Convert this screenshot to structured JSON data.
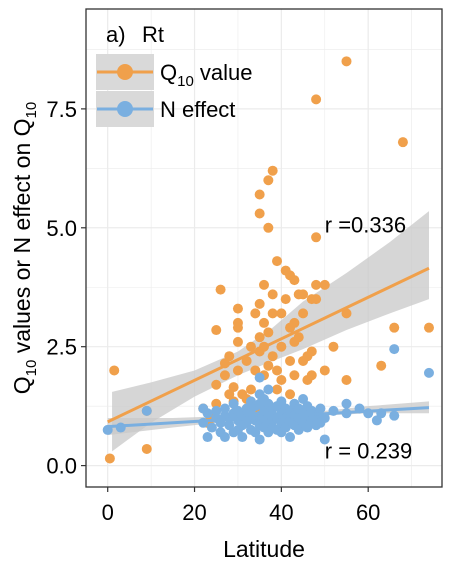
{
  "chart_data": {
    "type": "scatter",
    "panel_label": "a)",
    "panel_title": "Rt",
    "xlabel": "Latitude",
    "ylabel": {
      "before": "Q",
      "sub": "10",
      "middle": " values or N effect on Q",
      "sub2": "10"
    },
    "xlim": [
      -5,
      77
    ],
    "ylim": [
      -0.45,
      9.6
    ],
    "x_ticks": [
      0,
      20,
      40,
      60
    ],
    "x_tick_labels": [
      "0",
      "20",
      "40",
      "60"
    ],
    "y_ticks": [
      0,
      2.5,
      5,
      7.5
    ],
    "y_tick_labels": [
      "0.0",
      "2.5",
      "5.0",
      "7.5"
    ],
    "grid": true,
    "legend_position": "top-left",
    "colors": {
      "q10": "#F0A04B",
      "n": "#7AAFE0",
      "ci": "#C8C8C8",
      "grid": "#EBEBEB"
    },
    "series": [
      {
        "key": "q10",
        "legend": {
          "main": "Q",
          "sub": "10",
          "rest": " value"
        },
        "points": [
          [
            0.5,
            0.15
          ],
          [
            1.5,
            2.0
          ],
          [
            9,
            0.35
          ],
          [
            9,
            1.15
          ],
          [
            22,
            1.2
          ],
          [
            23,
            0.9
          ],
          [
            24,
            1.0
          ],
          [
            25,
            1.3
          ],
          [
            25,
            1.7
          ],
          [
            25,
            2.85
          ],
          [
            27,
            1.9
          ],
          [
            27,
            2.15
          ],
          [
            26,
            3.7
          ],
          [
            28,
            1.5
          ],
          [
            28,
            2.3
          ],
          [
            29,
            1.35
          ],
          [
            29,
            1.65
          ],
          [
            30,
            2.0
          ],
          [
            30,
            2.6
          ],
          [
            30,
            3.3
          ],
          [
            30,
            3.0
          ],
          [
            30,
            2.9
          ],
          [
            31,
            1.5
          ],
          [
            32,
            1.4
          ],
          [
            32,
            2.2
          ],
          [
            33,
            1.6
          ],
          [
            33,
            2.5
          ],
          [
            34,
            2.0
          ],
          [
            34,
            3.2
          ],
          [
            34,
            1.2
          ],
          [
            35,
            2.7
          ],
          [
            35,
            5.3
          ],
          [
            35,
            5.7
          ],
          [
            35,
            3.4
          ],
          [
            35,
            2.4
          ],
          [
            36,
            3.0
          ],
          [
            36,
            2.5
          ],
          [
            36,
            1.9
          ],
          [
            36,
            3.8
          ],
          [
            36,
            1.3
          ],
          [
            37,
            6.0
          ],
          [
            37,
            5.0
          ],
          [
            37,
            2.1
          ],
          [
            37,
            2.8
          ],
          [
            38,
            6.2
          ],
          [
            38,
            3.6
          ],
          [
            38,
            3.2
          ],
          [
            38,
            2.3
          ],
          [
            39,
            4.3
          ],
          [
            39,
            2.0
          ],
          [
            39,
            1.6
          ],
          [
            40,
            3.2
          ],
          [
            40,
            2.5
          ],
          [
            40,
            1.8
          ],
          [
            41,
            4.1
          ],
          [
            41,
            3.5
          ],
          [
            42,
            4.0
          ],
          [
            42,
            2.9
          ],
          [
            42,
            2.2
          ],
          [
            42,
            1.5
          ],
          [
            43,
            3.9
          ],
          [
            43,
            3.0
          ],
          [
            43,
            2.6
          ],
          [
            43,
            1.9
          ],
          [
            44,
            3.6
          ],
          [
            44,
            2.7
          ],
          [
            45,
            3.6
          ],
          [
            45,
            3.2
          ],
          [
            45,
            2.2
          ],
          [
            46,
            2.3
          ],
          [
            46,
            1.8
          ],
          [
            47,
            3.5
          ],
          [
            47,
            2.4
          ],
          [
            47,
            1.9
          ],
          [
            48,
            7.7
          ],
          [
            48,
            4.8
          ],
          [
            48,
            3.8
          ],
          [
            48,
            3.5
          ],
          [
            50,
            3.8
          ],
          [
            50,
            2.0
          ],
          [
            52,
            2.5
          ],
          [
            55,
            8.5
          ],
          [
            55,
            3.2
          ],
          [
            55,
            1.8
          ],
          [
            63,
            2.1
          ],
          [
            66,
            2.9
          ],
          [
            68,
            6.8
          ],
          [
            74,
            2.9
          ]
        ],
        "trend": {
          "x": [
            0,
            74
          ],
          "y": [
            0.92,
            4.15
          ]
        },
        "ci": {
          "upper": [
            [
              1,
              1.55
            ],
            [
              10,
              1.75
            ],
            [
              20,
              2.0
            ],
            [
              30,
              2.4
            ],
            [
              38,
              2.9
            ],
            [
              45,
              3.45
            ],
            [
              55,
              4.05
            ],
            [
              65,
              4.7
            ],
            [
              74,
              5.35
            ]
          ],
          "lower": [
            [
              1,
              0.3
            ],
            [
              10,
              0.9
            ],
            [
              20,
              1.45
            ],
            [
              30,
              1.9
            ],
            [
              38,
              2.2
            ],
            [
              45,
              2.45
            ],
            [
              55,
              2.85
            ],
            [
              65,
              3.2
            ],
            [
              74,
              3.5
            ]
          ]
        },
        "annotation": {
          "text": "r =0.336",
          "x": 50,
          "y": 4.9
        }
      },
      {
        "key": "n",
        "legend": {
          "main": "N effect",
          "sub": "",
          "rest": ""
        },
        "points": [
          [
            0,
            0.75
          ],
          [
            3,
            0.8
          ],
          [
            9,
            1.15
          ],
          [
            22,
            1.2
          ],
          [
            22,
            0.9
          ],
          [
            23,
            0.6
          ],
          [
            23,
            1.1
          ],
          [
            24,
            0.8
          ],
          [
            25,
            1.0
          ],
          [
            25,
            1.15
          ],
          [
            26,
            0.7
          ],
          [
            26,
            0.9
          ],
          [
            27,
            1.05
          ],
          [
            27,
            0.6
          ],
          [
            27,
            1.2
          ],
          [
            28,
            0.85
          ],
          [
            28,
            1.0
          ],
          [
            29,
            0.7
          ],
          [
            29,
            1.3
          ],
          [
            29,
            1.1
          ],
          [
            30,
            0.95
          ],
          [
            30,
            0.75
          ],
          [
            30,
            1.15
          ],
          [
            31,
            0.85
          ],
          [
            31,
            1.05
          ],
          [
            31,
            0.6
          ],
          [
            32,
            1.2
          ],
          [
            32,
            0.9
          ],
          [
            32,
            1.0
          ],
          [
            33,
            0.75
          ],
          [
            33,
            1.1
          ],
          [
            33,
            1.35
          ],
          [
            34,
            0.95
          ],
          [
            34,
            0.7
          ],
          [
            34,
            1.25
          ],
          [
            35,
            1.05
          ],
          [
            35,
            0.85
          ],
          [
            35,
            0.55
          ],
          [
            35,
            1.3
          ],
          [
            35,
            1.5
          ],
          [
            35,
            1.85
          ],
          [
            36,
            1.0
          ],
          [
            36,
            0.8
          ],
          [
            36,
            1.15
          ],
          [
            36,
            1.4
          ],
          [
            37,
            0.9
          ],
          [
            37,
            1.1
          ],
          [
            37,
            0.7
          ],
          [
            37,
            1.3
          ],
          [
            37,
            1.6
          ],
          [
            38,
            0.95
          ],
          [
            38,
            1.2
          ],
          [
            38,
            0.8
          ],
          [
            38,
            1.05
          ],
          [
            39,
            1.0
          ],
          [
            39,
            0.75
          ],
          [
            39,
            1.25
          ],
          [
            40,
            1.1
          ],
          [
            40,
            0.9
          ],
          [
            40,
            1.35
          ],
          [
            40,
            0.7
          ],
          [
            41,
            1.0
          ],
          [
            41,
            1.2
          ],
          [
            41,
            0.8
          ],
          [
            42,
            0.95
          ],
          [
            42,
            1.15
          ],
          [
            42,
            0.6
          ],
          [
            43,
            1.05
          ],
          [
            43,
            0.85
          ],
          [
            43,
            1.3
          ],
          [
            44,
            1.0
          ],
          [
            44,
            0.75
          ],
          [
            44,
            1.2
          ],
          [
            45,
            0.9
          ],
          [
            45,
            1.1
          ],
          [
            45,
            1.4
          ],
          [
            46,
            1.05
          ],
          [
            46,
            0.8
          ],
          [
            46,
            1.25
          ],
          [
            47,
            0.95
          ],
          [
            47,
            1.15
          ],
          [
            48,
            1.0
          ],
          [
            48,
            0.85
          ],
          [
            48,
            1.1
          ],
          [
            49,
            1.2
          ],
          [
            49,
            0.9
          ],
          [
            50,
            1.0
          ],
          [
            50,
            0.55
          ],
          [
            52,
            1.15
          ],
          [
            55,
            1.3
          ],
          [
            55,
            1.1
          ],
          [
            58,
            1.2
          ],
          [
            60,
            1.1
          ],
          [
            62,
            0.95
          ],
          [
            63,
            1.1
          ],
          [
            66,
            2.45
          ],
          [
            66,
            1.05
          ],
          [
            74,
            1.95
          ]
        ],
        "trend": {
          "x": [
            0,
            74
          ],
          "y": [
            0.82,
            1.22
          ]
        },
        "ci": {
          "upper": [
            [
              0,
              1.0
            ],
            [
              15,
              1.0
            ],
            [
              30,
              1.05
            ],
            [
              40,
              1.1
            ],
            [
              50,
              1.15
            ],
            [
              60,
              1.25
            ],
            [
              74,
              1.35
            ]
          ],
          "lower": [
            [
              0,
              0.64
            ],
            [
              15,
              0.8
            ],
            [
              30,
              0.95
            ],
            [
              40,
              1.0
            ],
            [
              50,
              1.05
            ],
            [
              60,
              1.1
            ],
            [
              74,
              1.1
            ]
          ]
        },
        "annotation": {
          "text": "r = 0.239",
          "x": 50,
          "y": 0.15
        }
      }
    ]
  }
}
